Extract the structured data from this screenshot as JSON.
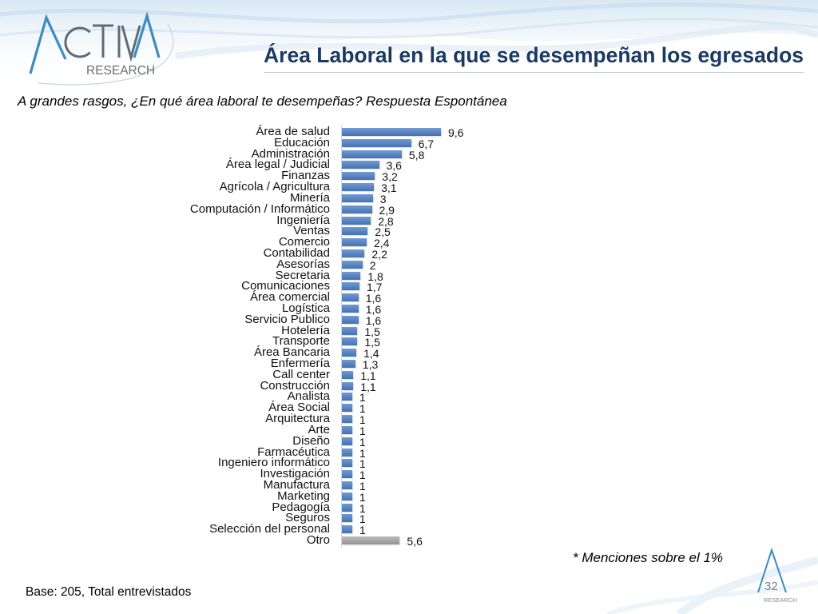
{
  "logo": {
    "name": "ACTIVA",
    "tagline": "RESEARCH"
  },
  "colors": {
    "title": "#1B3A63",
    "logo_accent": "#3A8DBE",
    "logo_text": "#5D6B77"
  },
  "chart_data": {
    "type": "bar",
    "orientation": "horizontal",
    "title": "Área Laboral en la que se desempeñan los egresados",
    "subtitle": "A grandes rasgos, ¿En qué área laboral te desempeñas? Respuesta Espontánea",
    "categories": [
      "Área de salud",
      "Educación",
      "Administración",
      "Área legal / Judicial",
      "Finanzas",
      "Agrícola / Agricultura",
      "Minería",
      "Computación / Informático",
      "Ingeniería",
      "Ventas",
      "Comercio",
      "Contabilidad",
      "Asesorías",
      "Secretaria",
      "Comunicaciones",
      "Área comercial",
      "Logística",
      "Servicio Publico",
      "Hotelería",
      "Transporte",
      "Área Bancaria",
      "Enfermería",
      "Call center",
      "Construcción",
      "Analista",
      "Área Social",
      "Arquitectura",
      "Arte",
      "Diseño",
      "Farmacéutica",
      "Ingeniero informático",
      "Investigación",
      "Manufactura",
      "Marketing",
      "Pedagogía",
      "Seguros",
      "Selección del personal",
      "Otro"
    ],
    "values": [
      9.6,
      6.7,
      5.8,
      3.6,
      3.2,
      3.1,
      3,
      2.9,
      2.8,
      2.5,
      2.4,
      2.2,
      2,
      1.8,
      1.7,
      1.6,
      1.6,
      1.6,
      1.5,
      1.5,
      1.4,
      1.3,
      1.1,
      1.1,
      1,
      1,
      1,
      1,
      1,
      1,
      1,
      1,
      1,
      1,
      1,
      1,
      1,
      5.6
    ],
    "data_labels": [
      "9,6",
      "6,7",
      "5,8",
      "3,6",
      "3,2",
      "3,1",
      "3",
      "2,9",
      "2,8",
      "2,5",
      "2,4",
      "2,2",
      "2",
      "1,8",
      "1,7",
      "1,6",
      "1,6",
      "1,6",
      "1,5",
      "1,5",
      "1,4",
      "1,3",
      "1,1",
      "1,1",
      "1",
      "1",
      "1",
      "1",
      "1",
      "1",
      "1",
      "1",
      "1",
      "1",
      "1",
      "1",
      "1",
      "5,6"
    ],
    "point_colors": [
      "#4B7EC6",
      "#4B7EC6",
      "#4B7EC6",
      "#4B7EC6",
      "#4B7EC6",
      "#4B7EC6",
      "#4B7EC6",
      "#4B7EC6",
      "#4B7EC6",
      "#4B7EC6",
      "#4B7EC6",
      "#4B7EC6",
      "#4B7EC6",
      "#4B7EC6",
      "#4B7EC6",
      "#4B7EC6",
      "#4B7EC6",
      "#4B7EC6",
      "#4B7EC6",
      "#4B7EC6",
      "#4B7EC6",
      "#4B7EC6",
      "#4B7EC6",
      "#4B7EC6",
      "#4B7EC6",
      "#4B7EC6",
      "#4B7EC6",
      "#4B7EC6",
      "#4B7EC6",
      "#4B7EC6",
      "#4B7EC6",
      "#4B7EC6",
      "#4B7EC6",
      "#4B7EC6",
      "#4B7EC6",
      "#4B7EC6",
      "#4B7EC6",
      "#A6A6A6"
    ],
    "grid": false,
    "legend": "none",
    "note": "* Menciones sobre el 1%"
  },
  "footer": {
    "base": "Base: 205, Total entrevistados",
    "page_number": "32"
  }
}
